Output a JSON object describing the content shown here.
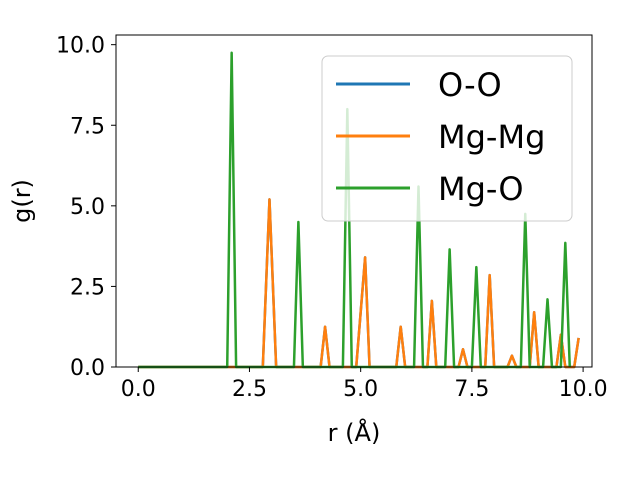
{
  "chart_data": {
    "type": "line",
    "xlabel": "r (Å)",
    "ylabel": "g(r)",
    "xlim": [
      -0.5,
      10.2
    ],
    "ylim": [
      0,
      10.3
    ],
    "xticks": [
      0.0,
      2.5,
      5.0,
      7.5,
      10.0
    ],
    "xtick_labels": [
      "0.0",
      "2.5",
      "5.0",
      "7.5",
      "10.0"
    ],
    "yticks": [
      0.0,
      2.5,
      5.0,
      7.5,
      10.0
    ],
    "ytick_labels": [
      "0.0",
      "2.5",
      "5.0",
      "7.5",
      "10.0"
    ],
    "grid": false,
    "legend_position": "upper right",
    "series": [
      {
        "name": "O-O",
        "color": "#1f77b4",
        "x": [
          0.0,
          2.8,
          2.95,
          3.1,
          4.1,
          4.2,
          4.3,
          4.9,
          5.1,
          5.2,
          5.8,
          5.9,
          6.0,
          6.5,
          6.6,
          6.7,
          7.2,
          7.3,
          7.4,
          7.8,
          7.9,
          8.0,
          8.3,
          8.4,
          8.5,
          8.8,
          8.9,
          9.0,
          9.4,
          9.5,
          9.6,
          9.8,
          9.9
        ],
        "y": [
          0.0,
          0.0,
          5.2,
          0.0,
          0.0,
          1.25,
          0.0,
          0.0,
          3.4,
          0.0,
          0.0,
          1.25,
          0.0,
          0.0,
          2.05,
          0.0,
          0.0,
          0.55,
          0.0,
          0.0,
          2.85,
          0.0,
          0.0,
          0.35,
          0.0,
          0.0,
          1.7,
          0.0,
          0.0,
          1.0,
          0.0,
          0.0,
          0.9
        ]
      },
      {
        "name": "Mg-Mg",
        "color": "#ff7f0e",
        "x": [
          0.0,
          2.8,
          2.95,
          3.1,
          4.1,
          4.2,
          4.3,
          4.9,
          5.1,
          5.2,
          5.8,
          5.9,
          6.0,
          6.5,
          6.6,
          6.7,
          7.2,
          7.3,
          7.4,
          7.8,
          7.9,
          8.0,
          8.3,
          8.4,
          8.5,
          8.8,
          8.9,
          9.0,
          9.4,
          9.5,
          9.6,
          9.8,
          9.9
        ],
        "y": [
          0.0,
          0.0,
          5.2,
          0.0,
          0.0,
          1.25,
          0.0,
          0.0,
          3.4,
          0.0,
          0.0,
          1.25,
          0.0,
          0.0,
          2.05,
          0.0,
          0.0,
          0.55,
          0.0,
          0.0,
          2.85,
          0.0,
          0.0,
          0.35,
          0.0,
          0.0,
          1.7,
          0.0,
          0.0,
          1.0,
          0.0,
          0.0,
          0.9
        ]
      },
      {
        "name": "Mg-O",
        "color": "#2ca02c",
        "x": [
          0.0,
          2.0,
          2.1,
          2.2,
          3.5,
          3.6,
          3.7,
          4.6,
          4.7,
          4.8,
          6.2,
          6.3,
          6.4,
          6.9,
          7.0,
          7.1,
          7.5,
          7.6,
          7.7,
          8.6,
          8.7,
          8.8,
          9.1,
          9.2,
          9.3,
          9.5,
          9.6,
          9.7
        ],
        "y": [
          0.0,
          0.0,
          9.75,
          0.0,
          0.0,
          4.5,
          0.0,
          0.0,
          8.0,
          0.0,
          0.0,
          5.6,
          0.0,
          0.0,
          3.65,
          0.0,
          0.0,
          3.1,
          0.0,
          0.0,
          4.75,
          0.0,
          0.0,
          2.1,
          0.0,
          0.0,
          3.85,
          0.0
        ]
      }
    ]
  }
}
